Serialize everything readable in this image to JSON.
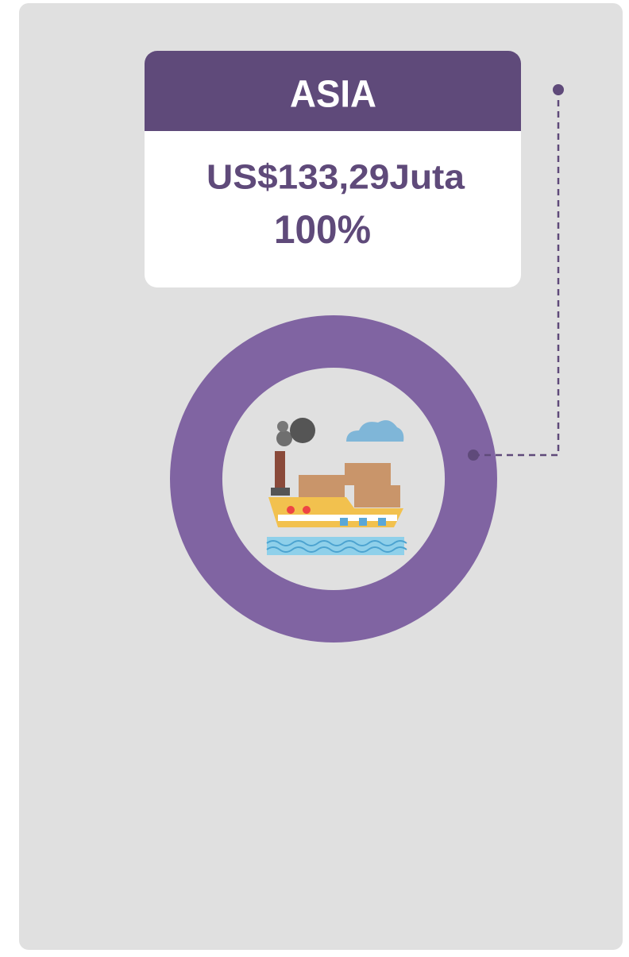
{
  "chart_data": {
    "type": "donut",
    "categories": [
      "ASIA"
    ],
    "values": [
      100
    ],
    "value_labels": [
      "100%"
    ],
    "annotations": [
      "US$133,29Juta"
    ],
    "color": "#8064a2"
  }
}
